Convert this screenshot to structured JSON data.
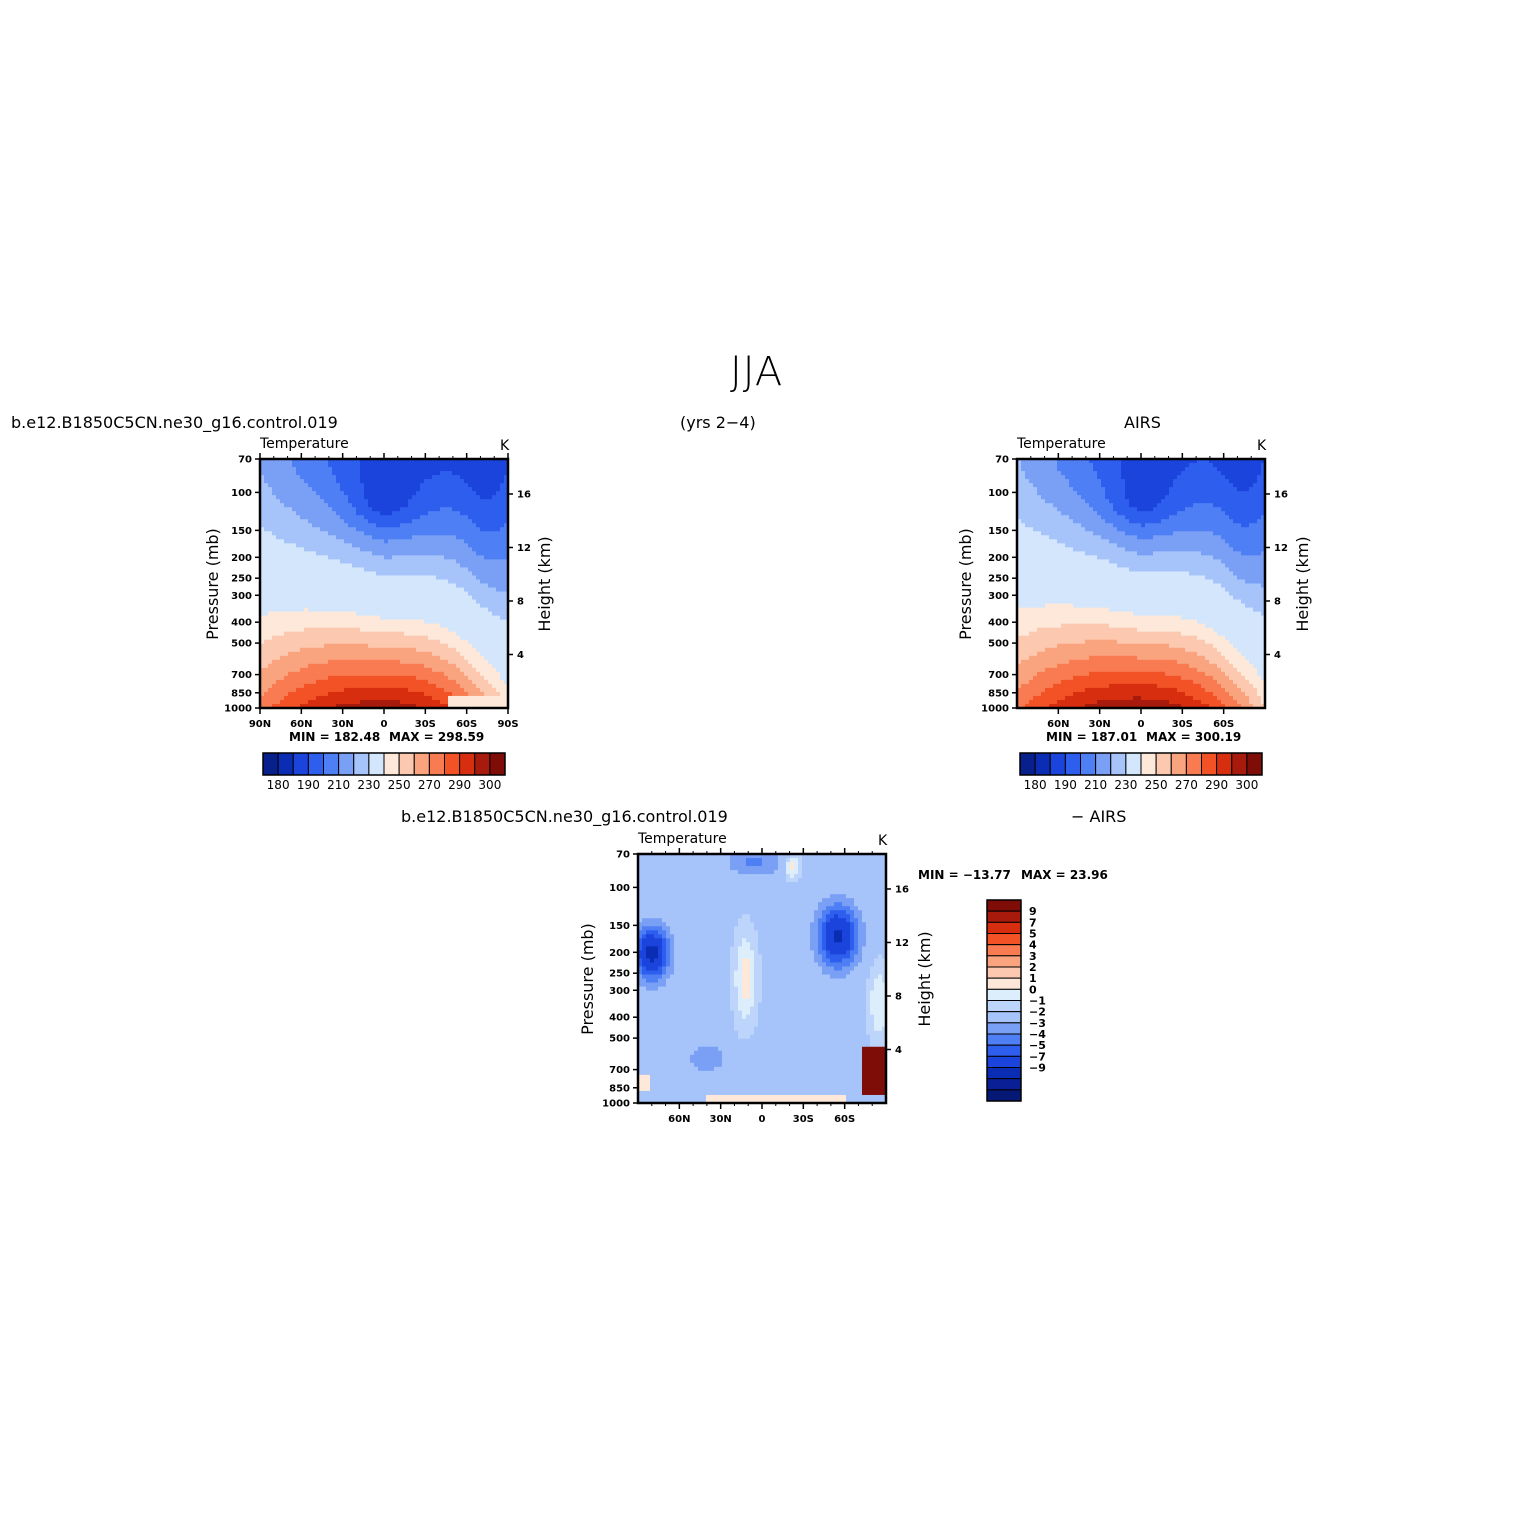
{
  "figure": {
    "main_title": "JJA",
    "top_left_header": "b.e12.B1850C5CN.ne30_g16.control.019",
    "top_center_header": "(yrs 2−4)",
    "top_right_header": "AIRS",
    "bottom_left_header": "b.e12.B1850C5CN.ne30_g16.control.019",
    "bottom_right_header": "− AIRS"
  },
  "colors": {
    "abs_palette": [
      "#08208c",
      "#0a2db4",
      "#1a44dc",
      "#2e5eee",
      "#4f7ff4",
      "#7aa0f6",
      "#a6c3fa",
      "#d4e6fc",
      "#fde8da",
      "#fcc9b0",
      "#faa47f",
      "#f87b52",
      "#f25226",
      "#d82e10",
      "#a81a0c",
      "#7e0d08"
    ],
    "diff_palette": [
      "#7e0d08",
      "#a81a0c",
      "#d82e10",
      "#f25226",
      "#f87b52",
      "#faa47f",
      "#fcc9b0",
      "#fde8da",
      "#dceefc",
      "#bdd5fb",
      "#a6c3fa",
      "#7aa0f6",
      "#4f7ff4",
      "#2e5eee",
      "#1a44dc",
      "#0a2db4",
      "#0a1e96",
      "#061876"
    ]
  },
  "chart_data": [
    {
      "type": "heatmap",
      "subtitle": "Temperature",
      "units": "K",
      "ylabel": "Pressure (mb)",
      "y2label": "Height (km)",
      "x_ticks": [
        "90N",
        "60N",
        "30N",
        "0",
        "30S",
        "60S",
        "90S"
      ],
      "y_ticks": [
        "70",
        "100",
        "150",
        "200",
        "250",
        "300",
        "400",
        "500",
        "700",
        "850",
        "1000"
      ],
      "y2_ticks": [
        "16",
        "12",
        "8",
        "4"
      ],
      "min_text": "MIN = 182.48",
      "max_text": "MAX = 298.59",
      "min": 182.48,
      "max": 298.59,
      "colorbar_labels": [
        "180",
        "190",
        "210",
        "230",
        "250",
        "270",
        "290",
        "300"
      ]
    },
    {
      "type": "heatmap",
      "subtitle": "Temperature",
      "units": "K",
      "ylabel": "Pressure (mb)",
      "y2label": "Height (km)",
      "x_ticks": [
        "60N",
        "30N",
        "0",
        "30S",
        "60S"
      ],
      "y_ticks": [
        "70",
        "100",
        "150",
        "200",
        "250",
        "300",
        "400",
        "500",
        "700",
        "850",
        "1000"
      ],
      "y2_ticks": [
        "16",
        "12",
        "8",
        "4"
      ],
      "min_text": "MIN = 187.01",
      "max_text": "MAX = 300.19",
      "min": 187.01,
      "max": 300.19,
      "colorbar_labels": [
        "180",
        "190",
        "210",
        "230",
        "250",
        "270",
        "290",
        "300"
      ]
    },
    {
      "type": "heatmap",
      "subtitle": "Temperature",
      "units": "K",
      "ylabel": "Pressure (mb)",
      "y2label": "Height (km)",
      "x_ticks": [
        "60N",
        "30N",
        "0",
        "30S",
        "60S"
      ],
      "y_ticks": [
        "70",
        "100",
        "150",
        "200",
        "250",
        "300",
        "400",
        "500",
        "700",
        "850",
        "1000"
      ],
      "y2_ticks": [
        "16",
        "12",
        "8",
        "4"
      ],
      "min_text": "MIN = −13.77",
      "max_text": "MAX =  23.96",
      "min": -13.77,
      "max": 23.96,
      "colorbar_labels": [
        "9",
        "7",
        "5",
        "4",
        "3",
        "2",
        "1",
        "0",
        "−1",
        "−2",
        "−3",
        "−4",
        "−5",
        "−7",
        "−9"
      ]
    }
  ]
}
